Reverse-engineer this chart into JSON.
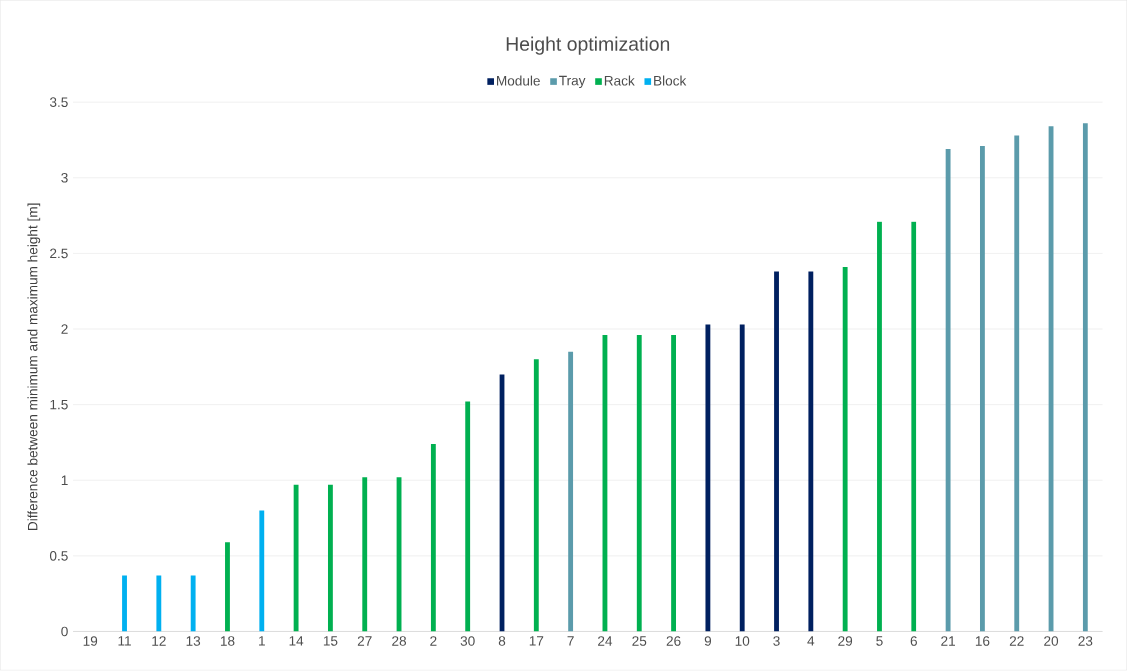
{
  "chart_data": {
    "type": "bar",
    "title": "Height optimization",
    "ylabel": "Difference between minimum and maximum height [m]",
    "categories": [
      "19",
      "11",
      "12",
      "13",
      "18",
      "1",
      "14",
      "15",
      "27",
      "28",
      "2",
      "30",
      "8",
      "17",
      "7",
      "24",
      "25",
      "26",
      "9",
      "10",
      "3",
      "4",
      "29",
      "5",
      "6",
      "21",
      "16",
      "22",
      "20",
      "23"
    ],
    "series": [
      {
        "name": "Module",
        "color": "#002060",
        "values": [
          null,
          null,
          null,
          null,
          null,
          null,
          null,
          null,
          null,
          null,
          null,
          null,
          1.7,
          null,
          null,
          null,
          null,
          null,
          2.03,
          2.03,
          2.38,
          2.38,
          null,
          null,
          null,
          null,
          null,
          null,
          null,
          null
        ]
      },
      {
        "name": "Tray",
        "color": "#5b9bab",
        "values": [
          null,
          null,
          null,
          null,
          null,
          null,
          null,
          null,
          null,
          null,
          null,
          null,
          null,
          null,
          1.85,
          null,
          null,
          null,
          null,
          null,
          null,
          null,
          null,
          null,
          null,
          3.19,
          3.21,
          3.28,
          3.34,
          3.36
        ]
      },
      {
        "name": "Rack",
        "color": "#00b050",
        "values": [
          null,
          null,
          null,
          null,
          0.59,
          null,
          0.97,
          0.97,
          1.02,
          1.02,
          1.24,
          1.52,
          null,
          1.8,
          null,
          1.96,
          1.96,
          1.96,
          null,
          null,
          null,
          null,
          2.41,
          2.71,
          2.71,
          null,
          null,
          null,
          null,
          null
        ]
      },
      {
        "name": "Block",
        "color": "#00b0f0",
        "values": [
          null,
          0.37,
          0.37,
          0.37,
          null,
          0.8,
          null,
          null,
          null,
          null,
          null,
          null,
          null,
          null,
          null,
          null,
          null,
          null,
          null,
          null,
          null,
          null,
          null,
          null,
          null,
          null,
          null,
          null,
          null,
          null
        ]
      }
    ],
    "ylim": [
      0,
      3.5
    ],
    "yticks": [
      0,
      0.5,
      1,
      1.5,
      2,
      2.5,
      3,
      3.5
    ],
    "grid": "y",
    "legend": "top"
  }
}
